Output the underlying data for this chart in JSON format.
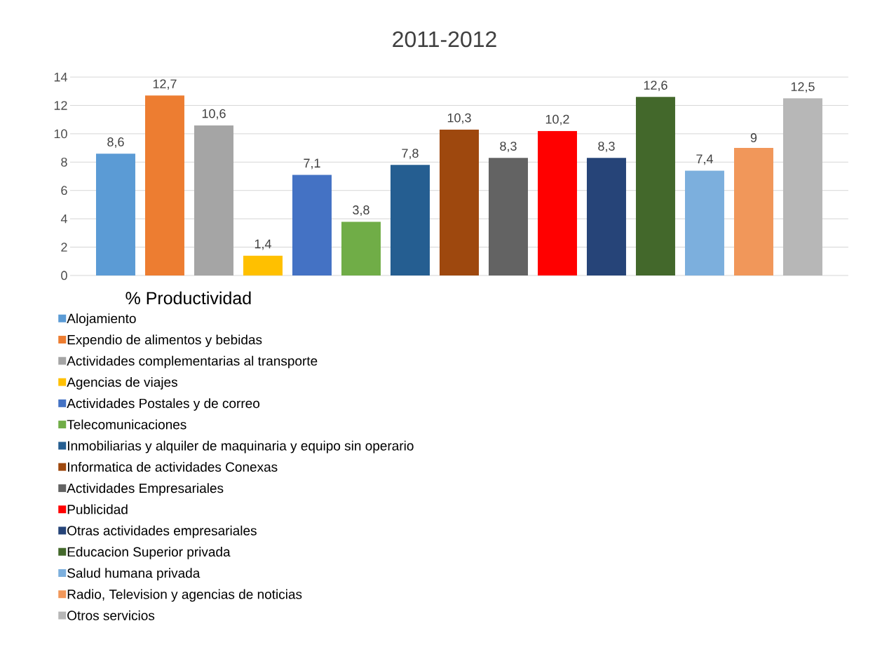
{
  "chart_data": {
    "type": "bar",
    "title": "2011-2012",
    "legend_title": "% Productividad",
    "categories": [
      null
    ],
    "series": [
      {
        "name": "Alojamiento",
        "color": "#5b9bd5",
        "values": [
          8.6
        ],
        "value_labels": [
          "8,6"
        ]
      },
      {
        "name": "Expendio de alimentos y bebidas",
        "color": "#ed7d31",
        "values": [
          12.7
        ],
        "value_labels": [
          "12,7"
        ]
      },
      {
        "name": "Actividades complementarias al transporte",
        "color": "#a5a5a5",
        "values": [
          10.6
        ],
        "value_labels": [
          "10,6"
        ]
      },
      {
        "name": "Agencias de viajes",
        "color": "#ffc000",
        "values": [
          1.4
        ],
        "value_labels": [
          "1,4"
        ]
      },
      {
        "name": "Actividades Postales y de correo",
        "color": "#4472c4",
        "values": [
          7.1
        ],
        "value_labels": [
          "7,1"
        ]
      },
      {
        "name": "Telecomunicaciones",
        "color": "#70ad47",
        "values": [
          3.8
        ],
        "value_labels": [
          "3,8"
        ]
      },
      {
        "name": "Inmobiliarias y alquiler de maquinaria y equipo sin operario",
        "color": "#255e91",
        "values": [
          7.8
        ],
        "value_labels": [
          "7,8"
        ]
      },
      {
        "name": "Informatica de actividades Conexas",
        "color": "#9e480e",
        "values": [
          10.3
        ],
        "value_labels": [
          "10,3"
        ]
      },
      {
        "name": "Actividades Empresariales",
        "color": "#636363",
        "values": [
          8.3
        ],
        "value_labels": [
          "8,3"
        ]
      },
      {
        "name": "Publicidad",
        "color": "#ff0000",
        "values": [
          10.2
        ],
        "value_labels": [
          "10,2"
        ]
      },
      {
        "name": "Otras actividades empresariales",
        "color": "#264478",
        "values": [
          8.3
        ],
        "value_labels": [
          "8,3"
        ]
      },
      {
        "name": "Educacion Superior privada",
        "color": "#43682b",
        "values": [
          12.6
        ],
        "value_labels": [
          "12,6"
        ]
      },
      {
        "name": "Salud humana privada",
        "color": "#7cafdd",
        "values": [
          7.4
        ],
        "value_labels": [
          "7,4"
        ]
      },
      {
        "name": "Radio, Television y agencias de noticias",
        "color": "#f1975a",
        "values": [
          9
        ],
        "value_labels": [
          "9"
        ]
      },
      {
        "name": "Otros servicios",
        "color": "#b7b7b7",
        "values": [
          12.5
        ],
        "value_labels": [
          "12,5"
        ]
      }
    ],
    "ylim": [
      0,
      14
    ],
    "yticks": [
      0,
      2,
      4,
      6,
      8,
      10,
      12,
      14
    ],
    "grid": "y",
    "legend": "bottom"
  }
}
